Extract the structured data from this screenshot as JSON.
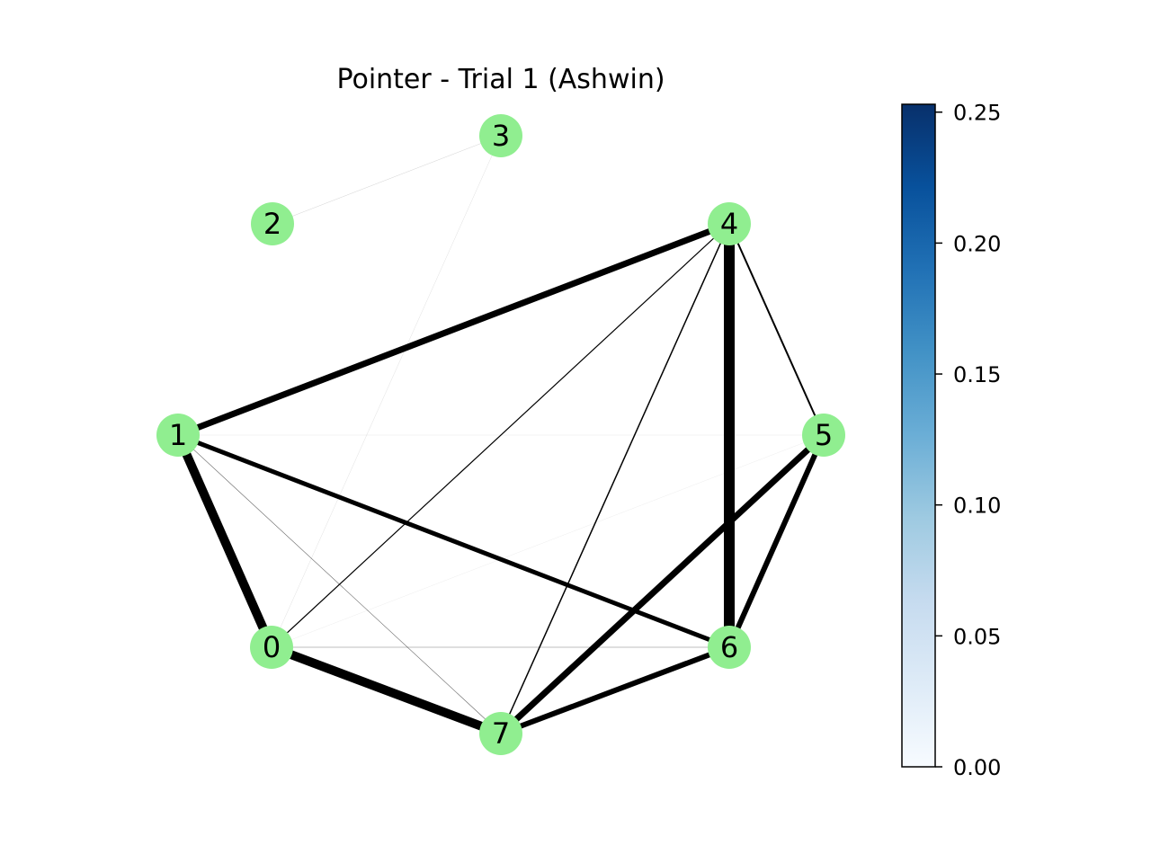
{
  "figure": {
    "title": "Pointer - Trial 1 (Ashwin)"
  },
  "graph": {
    "node_color": "#90ee90",
    "edge_color": "#000000",
    "nodes": [
      {
        "id": "0",
        "label": "0"
      },
      {
        "id": "1",
        "label": "1"
      },
      {
        "id": "2",
        "label": "2"
      },
      {
        "id": "3",
        "label": "3"
      },
      {
        "id": "4",
        "label": "4"
      },
      {
        "id": "5",
        "label": "5"
      },
      {
        "id": "6",
        "label": "6"
      },
      {
        "id": "7",
        "label": "7"
      }
    ],
    "edges": [
      {
        "source": "4",
        "target": "6",
        "weight": 12
      },
      {
        "source": "1",
        "target": "0",
        "weight": 10
      },
      {
        "source": "0",
        "target": "7",
        "weight": 10
      },
      {
        "source": "1",
        "target": "4",
        "weight": 7
      },
      {
        "source": "5",
        "target": "7",
        "weight": 7
      },
      {
        "source": "5",
        "target": "6",
        "weight": 6
      },
      {
        "source": "6",
        "target": "7",
        "weight": 6
      },
      {
        "source": "1",
        "target": "6",
        "weight": 5
      },
      {
        "source": "4",
        "target": "5",
        "weight": 2
      },
      {
        "source": "4",
        "target": "7",
        "weight": 1.5
      },
      {
        "source": "4",
        "target": "0",
        "weight": 1.2
      },
      {
        "source": "1",
        "target": "7",
        "weight": 0.6
      },
      {
        "source": "0",
        "target": "6",
        "weight": 0.5
      },
      {
        "source": "2",
        "target": "3",
        "weight": 0.3
      },
      {
        "source": "3",
        "target": "0",
        "weight": 0.25
      },
      {
        "source": "1",
        "target": "5",
        "weight": 0.2
      },
      {
        "source": "0",
        "target": "5",
        "weight": 0.15
      }
    ]
  },
  "colorbar": {
    "colormap": "Blues",
    "colors": [
      "#f7fbff",
      "#deebf7",
      "#c6dbef",
      "#9ecae1",
      "#6baed6",
      "#4292c6",
      "#2171b5",
      "#08519c",
      "#08306b"
    ],
    "min": 0.0,
    "max": 0.253,
    "ticks": [
      {
        "value": 0.0,
        "label": "0.00"
      },
      {
        "value": 0.05,
        "label": "0.05"
      },
      {
        "value": 0.1,
        "label": "0.10"
      },
      {
        "value": 0.15,
        "label": "0.15"
      },
      {
        "value": 0.2,
        "label": "0.20"
      },
      {
        "value": 0.25,
        "label": "0.25"
      }
    ]
  }
}
